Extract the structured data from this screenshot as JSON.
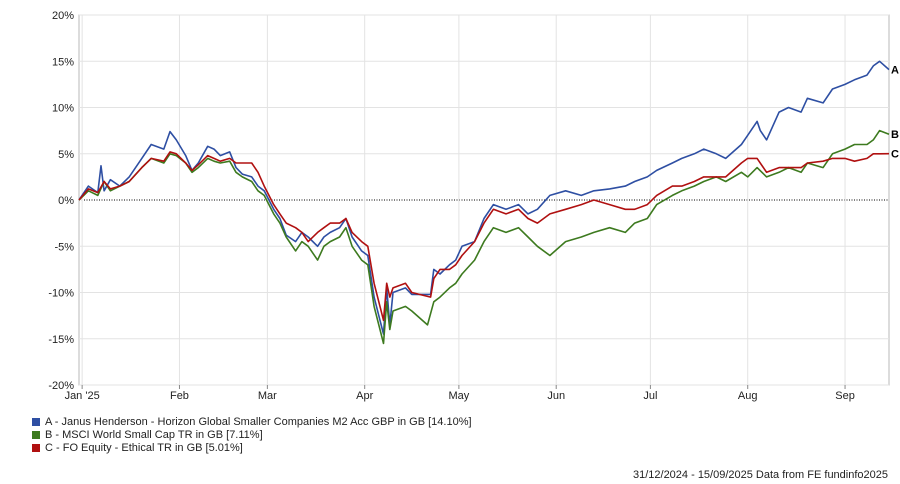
{
  "chart_data": {
    "type": "line",
    "ylim": [
      -20,
      20
    ],
    "y_ticks": [
      "20%",
      "15%",
      "10%",
      "5%",
      "0%",
      "-5%",
      "-10%",
      "-15%",
      "-20%"
    ],
    "x_ticks": [
      "Jan '25",
      "Feb",
      "Mar",
      "Apr",
      "May",
      "Jun",
      "Jul",
      "Aug",
      "Sep"
    ],
    "x_tick_dates": [
      "2025-01-01",
      "2025-02-01",
      "2025-03-01",
      "2025-04-01",
      "2025-05-01",
      "2025-06-01",
      "2025-07-01",
      "2025-08-01",
      "2025-09-01"
    ],
    "x_range": [
      "2024-12-31",
      "2025-09-15"
    ],
    "series": [
      {
        "name": "A - Janus Henderson - Horizon Global Smaller Companies M2 Acc GBP in GB [14.10%]",
        "end_label": "A",
        "color": "#2e4fa3",
        "points": [
          [
            "2024-12-31",
            0
          ],
          [
            "2025-01-03",
            1.5
          ],
          [
            "2025-01-06",
            0.8
          ],
          [
            "2025-01-07",
            3.7
          ],
          [
            "2025-01-08",
            1.0
          ],
          [
            "2025-01-10",
            2.2
          ],
          [
            "2025-01-13",
            1.5
          ],
          [
            "2025-01-16",
            2.5
          ],
          [
            "2025-01-20",
            4.5
          ],
          [
            "2025-01-23",
            6.0
          ],
          [
            "2025-01-27",
            5.5
          ],
          [
            "2025-01-29",
            7.4
          ],
          [
            "2025-01-31",
            6.5
          ],
          [
            "2025-02-03",
            4.8
          ],
          [
            "2025-02-05",
            3.2
          ],
          [
            "2025-02-07",
            4.0
          ],
          [
            "2025-02-10",
            5.8
          ],
          [
            "2025-02-12",
            5.5
          ],
          [
            "2025-02-14",
            4.8
          ],
          [
            "2025-02-17",
            5.2
          ],
          [
            "2025-02-19",
            3.5
          ],
          [
            "2025-02-21",
            2.8
          ],
          [
            "2025-02-24",
            2.5
          ],
          [
            "2025-02-26",
            1.5
          ],
          [
            "2025-02-28",
            1.0
          ],
          [
            "2025-03-03",
            -1.0
          ],
          [
            "2025-03-05",
            -2.0
          ],
          [
            "2025-03-07",
            -3.8
          ],
          [
            "2025-03-10",
            -4.5
          ],
          [
            "2025-03-12",
            -3.5
          ],
          [
            "2025-03-14",
            -4.0
          ],
          [
            "2025-03-17",
            -5.0
          ],
          [
            "2025-03-19",
            -4.0
          ],
          [
            "2025-03-21",
            -3.5
          ],
          [
            "2025-03-24",
            -3.0
          ],
          [
            "2025-03-26",
            -2.0
          ],
          [
            "2025-03-28",
            -4.0
          ],
          [
            "2025-03-31",
            -5.5
          ],
          [
            "2025-04-02",
            -6.0
          ],
          [
            "2025-04-04",
            -10.5
          ],
          [
            "2025-04-07",
            -14.5
          ],
          [
            "2025-04-08",
            -9.5
          ],
          [
            "2025-04-09",
            -13.5
          ],
          [
            "2025-04-10",
            -10.0
          ],
          [
            "2025-04-14",
            -9.5
          ],
          [
            "2025-04-16",
            -10.2
          ],
          [
            "2025-04-22",
            -10.2
          ],
          [
            "2025-04-23",
            -7.5
          ],
          [
            "2025-04-25",
            -8.0
          ],
          [
            "2025-04-28",
            -7.0
          ],
          [
            "2025-04-30",
            -6.5
          ],
          [
            "2025-05-02",
            -5.0
          ],
          [
            "2025-05-06",
            -4.5
          ],
          [
            "2025-05-09",
            -2.0
          ],
          [
            "2025-05-12",
            -0.5
          ],
          [
            "2025-05-16",
            -1.0
          ],
          [
            "2025-05-20",
            -0.5
          ],
          [
            "2025-05-23",
            -1.5
          ],
          [
            "2025-05-26",
            -1.0
          ],
          [
            "2025-05-30",
            0.5
          ],
          [
            "2025-06-04",
            1.0
          ],
          [
            "2025-06-09",
            0.5
          ],
          [
            "2025-06-13",
            1.0
          ],
          [
            "2025-06-18",
            1.2
          ],
          [
            "2025-06-23",
            1.5
          ],
          [
            "2025-06-26",
            2.0
          ],
          [
            "2025-06-30",
            2.5
          ],
          [
            "2025-07-03",
            3.2
          ],
          [
            "2025-07-08",
            4.0
          ],
          [
            "2025-07-11",
            4.5
          ],
          [
            "2025-07-15",
            5.0
          ],
          [
            "2025-07-18",
            5.5
          ],
          [
            "2025-07-22",
            5.0
          ],
          [
            "2025-07-25",
            4.5
          ],
          [
            "2025-07-30",
            6.0
          ],
          [
            "2025-08-01",
            7.0
          ],
          [
            "2025-08-04",
            8.5
          ],
          [
            "2025-08-05",
            7.5
          ],
          [
            "2025-08-07",
            6.5
          ],
          [
            "2025-08-11",
            9.5
          ],
          [
            "2025-08-14",
            10.0
          ],
          [
            "2025-08-18",
            9.5
          ],
          [
            "2025-08-20",
            11.0
          ],
          [
            "2025-08-25",
            10.5
          ],
          [
            "2025-08-28",
            12.0
          ],
          [
            "2025-09-01",
            12.5
          ],
          [
            "2025-09-04",
            13.0
          ],
          [
            "2025-09-08",
            13.5
          ],
          [
            "2025-09-10",
            14.5
          ],
          [
            "2025-09-12",
            15.0
          ],
          [
            "2025-09-15",
            14.1
          ]
        ]
      },
      {
        "name": "B - MSCI World Small Cap TR in GB [7.11%]",
        "end_label": "B",
        "color": "#3d7a1f",
        "points": [
          [
            "2024-12-31",
            0
          ],
          [
            "2025-01-03",
            1.0
          ],
          [
            "2025-01-06",
            0.5
          ],
          [
            "2025-01-08",
            2.0
          ],
          [
            "2025-01-10",
            1.0
          ],
          [
            "2025-01-13",
            1.5
          ],
          [
            "2025-01-16",
            2.0
          ],
          [
            "2025-01-20",
            3.5
          ],
          [
            "2025-01-23",
            4.5
          ],
          [
            "2025-01-27",
            4.0
          ],
          [
            "2025-01-29",
            5.0
          ],
          [
            "2025-01-31",
            4.8
          ],
          [
            "2025-02-03",
            4.0
          ],
          [
            "2025-02-05",
            3.0
          ],
          [
            "2025-02-07",
            3.5
          ],
          [
            "2025-02-10",
            4.5
          ],
          [
            "2025-02-12",
            4.2
          ],
          [
            "2025-02-14",
            4.0
          ],
          [
            "2025-02-17",
            4.2
          ],
          [
            "2025-02-19",
            3.0
          ],
          [
            "2025-02-21",
            2.5
          ],
          [
            "2025-02-24",
            2.0
          ],
          [
            "2025-02-26",
            1.0
          ],
          [
            "2025-02-28",
            0.5
          ],
          [
            "2025-03-03",
            -1.5
          ],
          [
            "2025-03-05",
            -2.5
          ],
          [
            "2025-03-07",
            -4.0
          ],
          [
            "2025-03-10",
            -5.5
          ],
          [
            "2025-03-12",
            -4.5
          ],
          [
            "2025-03-14",
            -5.0
          ],
          [
            "2025-03-17",
            -6.5
          ],
          [
            "2025-03-19",
            -5.0
          ],
          [
            "2025-03-21",
            -4.5
          ],
          [
            "2025-03-24",
            -4.0
          ],
          [
            "2025-03-26",
            -3.0
          ],
          [
            "2025-03-28",
            -5.0
          ],
          [
            "2025-03-31",
            -6.5
          ],
          [
            "2025-04-02",
            -7.0
          ],
          [
            "2025-04-04",
            -11.5
          ],
          [
            "2025-04-07",
            -15.5
          ],
          [
            "2025-04-08",
            -11.0
          ],
          [
            "2025-04-09",
            -14.0
          ],
          [
            "2025-04-10",
            -12.0
          ],
          [
            "2025-04-14",
            -11.5
          ],
          [
            "2025-04-16",
            -12.0
          ],
          [
            "2025-04-21",
            -13.5
          ],
          [
            "2025-04-23",
            -11.0
          ],
          [
            "2025-04-25",
            -10.5
          ],
          [
            "2025-04-28",
            -9.5
          ],
          [
            "2025-04-30",
            -9.0
          ],
          [
            "2025-05-02",
            -8.0
          ],
          [
            "2025-05-06",
            -6.5
          ],
          [
            "2025-05-09",
            -4.5
          ],
          [
            "2025-05-12",
            -3.0
          ],
          [
            "2025-05-16",
            -3.5
          ],
          [
            "2025-05-20",
            -3.0
          ],
          [
            "2025-05-23",
            -4.0
          ],
          [
            "2025-05-26",
            -5.0
          ],
          [
            "2025-05-30",
            -6.0
          ],
          [
            "2025-06-04",
            -4.5
          ],
          [
            "2025-06-09",
            -4.0
          ],
          [
            "2025-06-13",
            -3.5
          ],
          [
            "2025-06-18",
            -3.0
          ],
          [
            "2025-06-23",
            -3.5
          ],
          [
            "2025-06-26",
            -2.5
          ],
          [
            "2025-06-30",
            -2.0
          ],
          [
            "2025-07-03",
            -0.5
          ],
          [
            "2025-07-08",
            0.5
          ],
          [
            "2025-07-11",
            1.0
          ],
          [
            "2025-07-15",
            1.5
          ],
          [
            "2025-07-18",
            2.0
          ],
          [
            "2025-07-22",
            2.5
          ],
          [
            "2025-07-25",
            2.0
          ],
          [
            "2025-07-30",
            3.0
          ],
          [
            "2025-08-01",
            2.5
          ],
          [
            "2025-08-04",
            3.5
          ],
          [
            "2025-08-07",
            2.5
          ],
          [
            "2025-08-11",
            3.0
          ],
          [
            "2025-08-14",
            3.5
          ],
          [
            "2025-08-18",
            3.0
          ],
          [
            "2025-08-20",
            4.0
          ],
          [
            "2025-08-25",
            3.5
          ],
          [
            "2025-08-28",
            5.0
          ],
          [
            "2025-09-01",
            5.5
          ],
          [
            "2025-09-04",
            6.0
          ],
          [
            "2025-09-08",
            6.0
          ],
          [
            "2025-09-10",
            6.5
          ],
          [
            "2025-09-12",
            7.5
          ],
          [
            "2025-09-15",
            7.11
          ]
        ]
      },
      {
        "name": "C - FO Equity - Ethical TR in GB [5.01%]",
        "end_label": "C",
        "color": "#b01010",
        "points": [
          [
            "2024-12-31",
            0
          ],
          [
            "2025-01-03",
            1.2
          ],
          [
            "2025-01-06",
            0.8
          ],
          [
            "2025-01-08",
            2.0
          ],
          [
            "2025-01-10",
            1.2
          ],
          [
            "2025-01-13",
            1.5
          ],
          [
            "2025-01-16",
            2.0
          ],
          [
            "2025-01-20",
            3.5
          ],
          [
            "2025-01-23",
            4.5
          ],
          [
            "2025-01-27",
            4.2
          ],
          [
            "2025-01-29",
            5.2
          ],
          [
            "2025-01-31",
            5.0
          ],
          [
            "2025-02-03",
            4.0
          ],
          [
            "2025-02-05",
            3.2
          ],
          [
            "2025-02-07",
            3.8
          ],
          [
            "2025-02-10",
            4.8
          ],
          [
            "2025-02-12",
            4.5
          ],
          [
            "2025-02-14",
            4.2
          ],
          [
            "2025-02-17",
            4.5
          ],
          [
            "2025-02-19",
            4.0
          ],
          [
            "2025-02-21",
            4.0
          ],
          [
            "2025-02-24",
            4.0
          ],
          [
            "2025-02-26",
            3.0
          ],
          [
            "2025-02-28",
            1.5
          ],
          [
            "2025-03-03",
            -0.5
          ],
          [
            "2025-03-05",
            -1.5
          ],
          [
            "2025-03-07",
            -2.5
          ],
          [
            "2025-03-10",
            -3.0
          ],
          [
            "2025-03-12",
            -3.5
          ],
          [
            "2025-03-14",
            -4.5
          ],
          [
            "2025-03-17",
            -3.5
          ],
          [
            "2025-03-19",
            -3.0
          ],
          [
            "2025-03-21",
            -2.5
          ],
          [
            "2025-03-24",
            -2.5
          ],
          [
            "2025-03-26",
            -2.0
          ],
          [
            "2025-03-28",
            -3.5
          ],
          [
            "2025-03-31",
            -4.5
          ],
          [
            "2025-04-02",
            -5.0
          ],
          [
            "2025-04-04",
            -9.0
          ],
          [
            "2025-04-07",
            -13.0
          ],
          [
            "2025-04-08",
            -9.0
          ],
          [
            "2025-04-09",
            -10.5
          ],
          [
            "2025-04-10",
            -9.5
          ],
          [
            "2025-04-14",
            -9.0
          ],
          [
            "2025-04-16",
            -10.0
          ],
          [
            "2025-04-22",
            -10.5
          ],
          [
            "2025-04-23",
            -8.5
          ],
          [
            "2025-04-25",
            -7.5
          ],
          [
            "2025-04-28",
            -7.5
          ],
          [
            "2025-04-30",
            -7.0
          ],
          [
            "2025-05-02",
            -6.0
          ],
          [
            "2025-05-06",
            -4.5
          ],
          [
            "2025-05-09",
            -2.5
          ],
          [
            "2025-05-12",
            -1.0
          ],
          [
            "2025-05-16",
            -1.5
          ],
          [
            "2025-05-20",
            -1.0
          ],
          [
            "2025-05-23",
            -2.0
          ],
          [
            "2025-05-26",
            -2.5
          ],
          [
            "2025-05-30",
            -1.5
          ],
          [
            "2025-06-04",
            -1.0
          ],
          [
            "2025-06-09",
            -0.5
          ],
          [
            "2025-06-13",
            0.0
          ],
          [
            "2025-06-18",
            -0.5
          ],
          [
            "2025-06-23",
            -1.0
          ],
          [
            "2025-06-26",
            -1.0
          ],
          [
            "2025-06-30",
            -0.5
          ],
          [
            "2025-07-03",
            0.5
          ],
          [
            "2025-07-08",
            1.5
          ],
          [
            "2025-07-11",
            1.5
          ],
          [
            "2025-07-15",
            2.0
          ],
          [
            "2025-07-18",
            2.5
          ],
          [
            "2025-07-22",
            2.5
          ],
          [
            "2025-07-25",
            2.5
          ],
          [
            "2025-07-30",
            4.0
          ],
          [
            "2025-08-01",
            4.5
          ],
          [
            "2025-08-04",
            4.5
          ],
          [
            "2025-08-07",
            3.0
          ],
          [
            "2025-08-11",
            3.5
          ],
          [
            "2025-08-14",
            3.5
          ],
          [
            "2025-08-18",
            3.5
          ],
          [
            "2025-08-20",
            4.0
          ],
          [
            "2025-08-25",
            4.2
          ],
          [
            "2025-08-28",
            4.5
          ],
          [
            "2025-09-01",
            4.5
          ],
          [
            "2025-09-04",
            4.2
          ],
          [
            "2025-09-08",
            4.5
          ],
          [
            "2025-09-10",
            5.0
          ],
          [
            "2025-09-12",
            5.0
          ],
          [
            "2025-09-15",
            5.01
          ]
        ]
      }
    ],
    "zero_line": "dotted",
    "grid": true,
    "legend_placement": "bottom-left"
  },
  "footer": "31/12/2024 - 15/09/2025 Data from FE fundinfo2025"
}
